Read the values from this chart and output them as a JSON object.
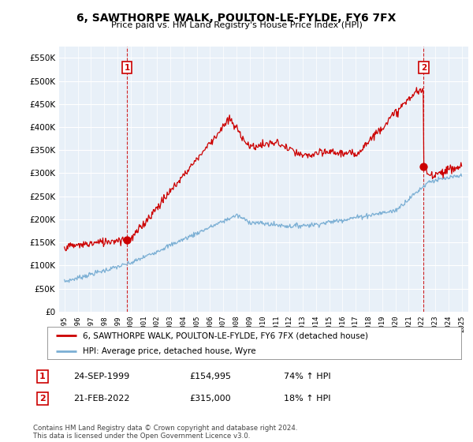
{
  "title": "6, SAWTHORPE WALK, POULTON-LE-FYLDE, FY6 7FX",
  "subtitle": "Price paid vs. HM Land Registry's House Price Index (HPI)",
  "ylim": [
    0,
    575000
  ],
  "yticks": [
    0,
    50000,
    100000,
    150000,
    200000,
    250000,
    300000,
    350000,
    400000,
    450000,
    500000,
    550000
  ],
  "sale1": {
    "date_num": 1999.73,
    "price": 154995,
    "label": "1",
    "date_str": "24-SEP-1999",
    "pct": "74% ↑ HPI"
  },
  "sale2": {
    "date_num": 2022.13,
    "price": 315000,
    "label": "2",
    "date_str": "21-FEB-2022",
    "pct": "18% ↑ HPI"
  },
  "legend_line1": "6, SAWTHORPE WALK, POULTON-LE-FYLDE, FY6 7FX (detached house)",
  "legend_line2": "HPI: Average price, detached house, Wyre",
  "table_row1": [
    "1",
    "24-SEP-1999",
    "£154,995",
    "74% ↑ HPI"
  ],
  "table_row2": [
    "2",
    "21-FEB-2022",
    "£315,000",
    "18% ↑ HPI"
  ],
  "footer": "Contains HM Land Registry data © Crown copyright and database right 2024.\nThis data is licensed under the Open Government Licence v3.0.",
  "hpi_color": "#7bafd4",
  "price_color": "#cc0000",
  "vline_color": "#cc0000",
  "chart_bg": "#e8f0f8",
  "background_color": "#ffffff",
  "grid_color": "#ffffff"
}
